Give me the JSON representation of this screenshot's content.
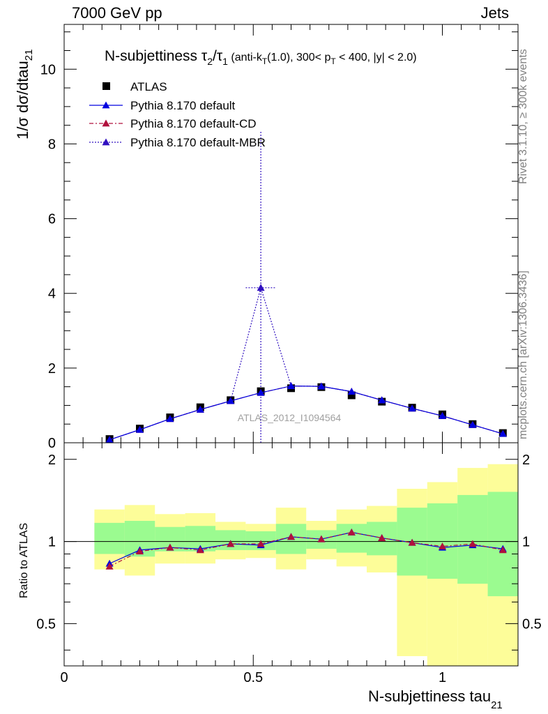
{
  "header": {
    "left": "7000 GeV pp",
    "right": "Jets"
  },
  "side_text": {
    "rivet": "Rivet 3.1.10, ≥ 300k events",
    "mcplots": "mcplots.cern.ch [arXiv:1306.3436]"
  },
  "watermark": "ATLAS_2012_I1094564",
  "chart_data": [
    {
      "type": "scatter",
      "title_main": "N-subjettiness τ",
      "title_parts": {
        "tau2_sub": "2",
        "slash": "/τ",
        "tau1_sub": "1",
        "anti": " (anti-k",
        "kt_sub": "T",
        "mid": "(1.0), 300< p",
        "pt_sub": "T",
        "tail": " < 400, |y| < 2.0)"
      },
      "ylabel": "1/σ dσ/dtau",
      "ylabel_sub": "21",
      "xlim": [
        0,
        1.2
      ],
      "ylim": [
        0,
        11.2
      ],
      "yticks": [
        0,
        2,
        4,
        6,
        8,
        10
      ],
      "x": [
        0.12,
        0.2,
        0.28,
        0.36,
        0.44,
        0.52,
        0.6,
        0.68,
        0.76,
        0.84,
        0.92,
        1.0,
        1.08,
        1.16
      ],
      "series": [
        {
          "name": "ATLAS",
          "marker": "square",
          "color": "#000000",
          "values": [
            0.1,
            0.38,
            0.68,
            0.95,
            1.14,
            1.38,
            1.46,
            1.49,
            1.27,
            1.1,
            0.94,
            0.76,
            0.5,
            0.26
          ]
        },
        {
          "name": "Pythia 8.170 default",
          "marker": "triangle",
          "color": "#0000e0",
          "line": "solid",
          "values": [
            0.08,
            0.35,
            0.64,
            0.89,
            1.12,
            1.34,
            1.52,
            1.51,
            1.37,
            1.14,
            0.92,
            0.72,
            0.48,
            0.24
          ]
        },
        {
          "name": "Pythia 8.170 default-CD",
          "marker": "triangle",
          "color": "#b0103c",
          "line": "dashdot",
          "values": [
            0.08,
            0.35,
            0.64,
            0.89,
            1.12,
            1.34,
            1.52,
            1.51,
            1.37,
            1.14,
            0.92,
            0.72,
            0.48,
            0.24
          ]
        },
        {
          "name": "Pythia 8.170 default-MBR",
          "marker": "triangle",
          "color": "#3010c0",
          "line": "dotted",
          "values": [
            0.08,
            0.35,
            0.64,
            0.89,
            1.12,
            4.15,
            1.52,
            1.51,
            1.37,
            1.14,
            0.92,
            0.72,
            0.48,
            0.24
          ],
          "outlier_error": {
            "x": 0.52,
            "y": 4.15,
            "ylow": 0,
            "yhigh": 8.35,
            "xlow": 0.48,
            "xhigh": 0.56
          }
        }
      ],
      "legend_position": "top-left"
    },
    {
      "type": "scatter",
      "ylabel": "Ratio to ATLAS",
      "xlabel": "N-subjettiness tau",
      "xlabel_sub": "21",
      "xlim": [
        0,
        1.2
      ],
      "ylim": [
        0.35,
        2.3
      ],
      "log_y": true,
      "yticks": [
        0.5,
        1,
        2
      ],
      "ytick_labels": [
        "0.5",
        "1",
        "2"
      ],
      "xticks": [
        0,
        0.5,
        1
      ],
      "xtick_labels": [
        "0",
        "0.5",
        "1"
      ],
      "band_edges": [
        0.08,
        0.16,
        0.24,
        0.32,
        0.4,
        0.48,
        0.56,
        0.64,
        0.72,
        0.8,
        0.88,
        0.96,
        1.04,
        1.12,
        1.2
      ],
      "band_inner": [
        [
          0.9,
          1.17
        ],
        [
          0.88,
          1.19
        ],
        [
          0.92,
          1.13
        ],
        [
          0.92,
          1.14
        ],
        [
          0.93,
          1.1
        ],
        [
          0.93,
          1.09
        ],
        [
          0.9,
          1.16
        ],
        [
          0.94,
          1.1
        ],
        [
          0.91,
          1.16
        ],
        [
          0.89,
          1.18
        ],
        [
          0.75,
          1.33
        ],
        [
          0.73,
          1.38
        ],
        [
          0.7,
          1.48
        ],
        [
          0.63,
          1.52
        ]
      ],
      "band_outer": [
        [
          0.79,
          1.31
        ],
        [
          0.75,
          1.36
        ],
        [
          0.83,
          1.26
        ],
        [
          0.83,
          1.27
        ],
        [
          0.86,
          1.18
        ],
        [
          0.87,
          1.16
        ],
        [
          0.79,
          1.33
        ],
        [
          0.86,
          1.19
        ],
        [
          0.81,
          1.31
        ],
        [
          0.77,
          1.35
        ],
        [
          0.38,
          1.56
        ],
        [
          0.35,
          1.65
        ],
        [
          0.35,
          1.86
        ],
        [
          0.35,
          1.92
        ]
      ],
      "band_colors": {
        "inner": "#9bfb90",
        "outer": "#fdfd99"
      },
      "series": [
        {
          "name": "Pythia 8.170 default",
          "color": "#0000e0",
          "values": [
            0.83,
            0.93,
            0.95,
            0.94,
            0.98,
            0.97,
            1.04,
            1.02,
            1.08,
            1.03,
            0.99,
            0.95,
            0.97,
            0.94
          ]
        },
        {
          "name": "Pythia 8.170 default-CD",
          "color": "#b0103c",
          "values": [
            0.81,
            0.92,
            0.95,
            0.93,
            0.98,
            0.98,
            1.04,
            1.02,
            1.08,
            1.03,
            0.99,
            0.96,
            0.98,
            0.93
          ]
        }
      ]
    }
  ]
}
